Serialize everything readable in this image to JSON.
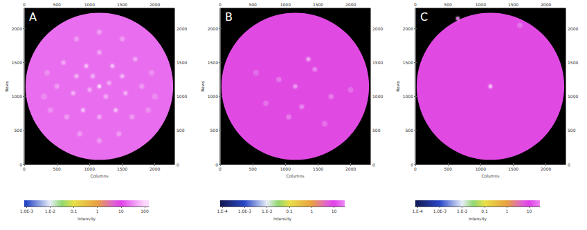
{
  "chart_data": [
    {
      "type": "scatter",
      "title": "A",
      "x_label": "Columns",
      "y_label": "Rows",
      "xlim": [
        0,
        2300
      ],
      "ylim": [
        0,
        2300
      ],
      "xticks": [
        0,
        500,
        1000,
        1500,
        2000
      ],
      "yticks": [
        0,
        500,
        1000,
        1500,
        2000
      ],
      "disc": {
        "center": [
          1150,
          1150
        ],
        "radius": 1130,
        "intensity": 20
      },
      "spots": {
        "x": [
          1150,
          950,
          1350,
          800,
          1500,
          750,
          1550,
          900,
          1400,
          1150,
          1150,
          600,
          1700,
          500,
          1800,
          650,
          1650,
          1150,
          1500,
          800,
          350,
          1950,
          400,
          1900,
          1150,
          1450,
          850,
          300,
          2000,
          1000,
          1300,
          1050,
          1250
        ],
        "y": [
          1150,
          1450,
          1450,
          1300,
          1300,
          1050,
          1050,
          800,
          800,
          700,
          1650,
          1500,
          1550,
          1150,
          1150,
          700,
          700,
          1950,
          1850,
          1850,
          1350,
          1350,
          800,
          800,
          350,
          450,
          450,
          1000,
          1000,
          1100,
          1200,
          1300,
          1000
        ],
        "intensity": [
          100,
          60,
          60,
          50,
          50,
          50,
          50,
          60,
          60,
          40,
          40,
          40,
          40,
          30,
          30,
          30,
          30,
          35,
          30,
          30,
          25,
          25,
          25,
          25,
          30,
          30,
          30,
          20,
          20,
          40,
          40,
          45,
          45
        ]
      },
      "colorbar": {
        "label": "Intensity",
        "lim": [
          0.0008,
          150
        ],
        "ticks": [
          {
            "value": 0.001,
            "label": "1.0E-3"
          },
          {
            "value": 0.01,
            "label": "1.E-2"
          },
          0.1,
          1,
          10,
          100
        ]
      }
    },
    {
      "type": "scatter",
      "title": "B",
      "x_label": "Columns",
      "y_label": "Rows",
      "xlim": [
        0,
        2300
      ],
      "ylim": [
        0,
        2300
      ],
      "xticks": [
        0,
        500,
        1000,
        1500,
        2000
      ],
      "yticks": [
        0,
        500,
        1000,
        1500,
        2000
      ],
      "disc": {
        "center": [
          1150,
          1150
        ],
        "radius": 1130,
        "intensity": 8
      },
      "spots": {
        "x": [
          1150,
          1350,
          1450,
          900,
          1250,
          1050,
          550,
          1700,
          2000,
          1600,
          700
        ],
        "y": [
          1150,
          1550,
          1400,
          1250,
          850,
          700,
          1350,
          1000,
          1100,
          600,
          900
        ],
        "intensity": [
          30,
          40,
          20,
          15,
          20,
          15,
          10,
          15,
          10,
          12,
          12
        ]
      },
      "colorbar": {
        "label": "Intensity",
        "lim": [
          8e-05,
          30
        ],
        "ticks": [
          {
            "value": 0.0001,
            "label": "1.E-4"
          },
          {
            "value": 0.001,
            "label": "1.0E-3"
          },
          {
            "value": 0.01,
            "label": "1.E-2"
          },
          0.1,
          1,
          10
        ]
      }
    },
    {
      "type": "scatter",
      "title": "C",
      "x_label": "Columns",
      "y_label": "Rows",
      "xlim": [
        0,
        2300
      ],
      "ylim": [
        0,
        2300
      ],
      "xticks": [
        0,
        500,
        1000,
        1500,
        2000
      ],
      "yticks": [
        0,
        500,
        1000,
        1500,
        2000
      ],
      "disc": {
        "center": [
          1150,
          1150
        ],
        "radius": 1130,
        "intensity": 8
      },
      "spots": {
        "x": [
          1150,
          650,
          1600
        ],
        "y": [
          1150,
          2150,
          2050
        ],
        "intensity": [
          60,
          15,
          12
        ]
      },
      "colorbar": {
        "label": "Intensity",
        "lim": [
          8e-05,
          30
        ],
        "ticks": [
          {
            "value": 0.0001,
            "label": "1.E-4"
          },
          {
            "value": 0.001,
            "label": "1.0E-3"
          },
          {
            "value": 0.01,
            "label": "1.E-2"
          },
          0.1,
          1,
          10
        ]
      }
    }
  ]
}
